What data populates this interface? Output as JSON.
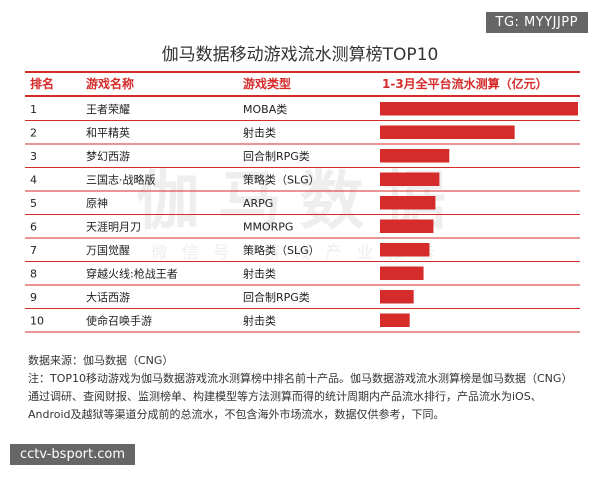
{
  "badges": {
    "top": "TG: MYYJJPP",
    "bottom": "cctv-bsport.com"
  },
  "watermark": {
    "big": "伽马数据",
    "small": "微信号 游戏产业报告"
  },
  "colors": {
    "accent": "#d62b2b",
    "header_text": "#d62b2b",
    "bar": "#d62b2b"
  },
  "chart_data": {
    "type": "table",
    "title": "伽马数据移动游戏流水测算榜TOP10",
    "columns": [
      "排名",
      "游戏名称",
      "游戏类型",
      "1-3月全平台流水测算（亿元）"
    ],
    "rows": [
      {
        "rank": "1",
        "name": "王者荣耀",
        "genre": "MOBA类"
      },
      {
        "rank": "2",
        "name": "和平精英",
        "genre": "射击类"
      },
      {
        "rank": "3",
        "name": "梦幻西游",
        "genre": "回合制RPG类"
      },
      {
        "rank": "4",
        "name": "三国志·战略版",
        "genre": "策略类（SLG）"
      },
      {
        "rank": "5",
        "name": "原神",
        "genre": "ARPG"
      },
      {
        "rank": "6",
        "name": "天涯明月刀",
        "genre": "MMORPG"
      },
      {
        "rank": "7",
        "name": "万国觉醒",
        "genre": "策略类（SLG）"
      },
      {
        "rank": "8",
        "name": "穿越火线:枪战王者",
        "genre": "射击类"
      },
      {
        "rank": "9",
        "name": "大话西游",
        "genre": "回合制RPG类"
      },
      {
        "rank": "10",
        "name": "使命召唤手游",
        "genre": "射击类"
      }
    ],
    "bar_values": [
      1.0,
      0.68,
      0.35,
      0.3,
      0.28,
      0.27,
      0.25,
      0.22,
      0.17,
      0.15
    ],
    "bar_scale": "relative",
    "xlim": [
      0,
      1.0
    ]
  },
  "notes": {
    "source": "数据来源：伽马数据（CNG）",
    "note": "注：TOP10移动游戏为伽马数据游戏流水测算榜中排名前十产品。伽马数据游戏流水测算榜是伽马数据（CNG）通过调研、查阅财报、监测榜单、构建模型等方法测算而得的统计周期内产品流水排行，产品流水为iOS、Android及越狱等渠道分成前的总流水，不包含海外市场流水，数据仅供参考，下同。"
  }
}
